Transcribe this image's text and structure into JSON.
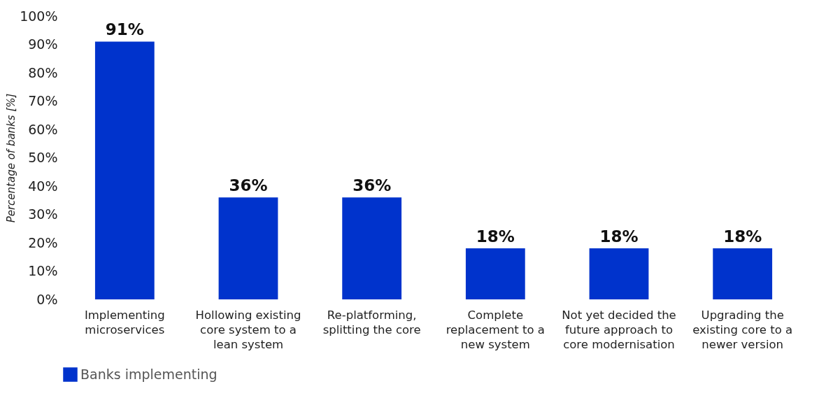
{
  "chart_data": {
    "type": "bar",
    "ylabel": "Percentage of banks [%]",
    "categories": [
      "Implementing microservices",
      "Hollowing existing core system to a lean system",
      "Re-platforming, splitting the core",
      "Complete replacement to a new system",
      "Not yet decided the future approach to core modernisation",
      "Upgrading the existing core to a newer version"
    ],
    "series": [
      {
        "name": "Banks implementing",
        "color": "#0033cc",
        "values": [
          91,
          36,
          36,
          18,
          18,
          18
        ]
      }
    ],
    "value_labels": [
      "91%",
      "36%",
      "36%",
      "18%",
      "18%",
      "18%"
    ],
    "ylim": [
      0,
      100
    ],
    "yticks": [
      {
        "value": 0,
        "label": "0%"
      },
      {
        "value": 10,
        "label": "10%"
      },
      {
        "value": 20,
        "label": "20%"
      },
      {
        "value": 30,
        "label": "30%"
      },
      {
        "value": 40,
        "label": "40%"
      },
      {
        "value": 50,
        "label": "50%"
      },
      {
        "value": 60,
        "label": "60%"
      },
      {
        "value": 70,
        "label": "70%"
      },
      {
        "value": 80,
        "label": "80%"
      },
      {
        "value": 90,
        "label": "90%"
      },
      {
        "value": 100,
        "label": "100%"
      }
    ],
    "grid": false,
    "legend": "bottom"
  }
}
